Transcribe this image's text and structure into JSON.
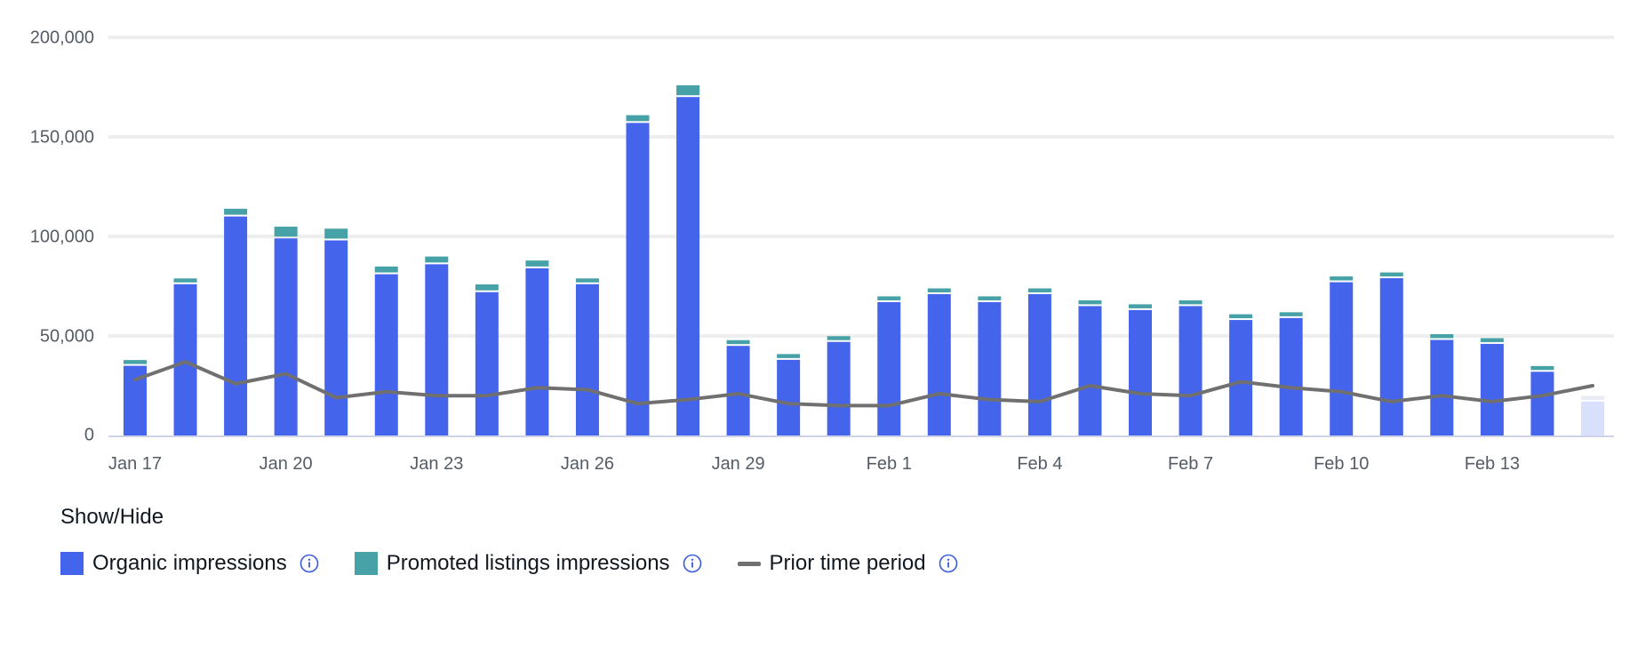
{
  "colors": {
    "organic": "#4464ec",
    "promoted": "#47a2a8",
    "prior": "#707070",
    "partial_organic": "#d9e0fb",
    "partial_promoted": "#e8ecf4",
    "grid": "#eeeeee",
    "axis": "#cfd3e8",
    "info_icon": "#3b5bdb"
  },
  "legend": {
    "title": "Show/Hide",
    "items": [
      {
        "label": "Organic impressions",
        "icon": "square-swatch",
        "info_icon": "info-circle-icon"
      },
      {
        "label": "Promoted listings impressions",
        "icon": "square-swatch",
        "info_icon": "info-circle-icon"
      },
      {
        "label": "Prior time period",
        "icon": "line-swatch",
        "info_icon": "info-circle-icon"
      }
    ]
  },
  "chart_data": {
    "type": "bar",
    "stacked": true,
    "x": [
      "Jan 17",
      "Jan 18",
      "Jan 19",
      "Jan 20",
      "Jan 21",
      "Jan 22",
      "Jan 23",
      "Jan 24",
      "Jan 25",
      "Jan 26",
      "Jan 27",
      "Jan 28",
      "Jan 29",
      "Jan 30",
      "Jan 31",
      "Feb 1",
      "Feb 2",
      "Feb 3",
      "Feb 4",
      "Feb 5",
      "Feb 6",
      "Feb 7",
      "Feb 8",
      "Feb 9",
      "Feb 10",
      "Feb 11",
      "Feb 12",
      "Feb 13",
      "Feb 14",
      "Feb 15"
    ],
    "x_tick_labels": [
      "Jan 17",
      "Jan 20",
      "Jan 23",
      "Jan 26",
      "Jan 29",
      "Feb 1",
      "Feb 4",
      "Feb 7",
      "Feb 10",
      "Feb 13"
    ],
    "x_tick_indices": [
      0,
      3,
      6,
      9,
      12,
      15,
      18,
      21,
      24,
      27
    ],
    "y_ticks": [
      0,
      50000,
      100000,
      150000,
      200000
    ],
    "y_tick_labels": [
      "0",
      "50,000",
      "100,000",
      "150,000",
      "200,000"
    ],
    "ylim": [
      0,
      200000
    ],
    "grid": true,
    "series": [
      {
        "name": "Organic impressions",
        "kind": "bar",
        "values": [
          35000,
          76000,
          110000,
          99000,
          98000,
          81000,
          86000,
          72000,
          84000,
          76000,
          157000,
          170000,
          45000,
          38000,
          47000,
          67000,
          71000,
          67000,
          71000,
          65000,
          63000,
          65000,
          58000,
          59000,
          77000,
          79000,
          48000,
          46000,
          32000,
          17000
        ]
      },
      {
        "name": "Promoted listings impressions",
        "kind": "bar",
        "values": [
          2000,
          2000,
          3000,
          5000,
          5000,
          3000,
          3000,
          3000,
          3000,
          2000,
          3000,
          5000,
          2000,
          2000,
          2000,
          2000,
          2000,
          2000,
          2000,
          2000,
          2000,
          2000,
          2000,
          2000,
          2000,
          2000,
          2000,
          2000,
          2000,
          2000
        ]
      },
      {
        "name": "Prior time period",
        "kind": "line",
        "values": [
          28000,
          37000,
          26000,
          31000,
          19000,
          22000,
          20000,
          20000,
          24000,
          23000,
          16000,
          18000,
          21000,
          16000,
          15000,
          15000,
          21000,
          18000,
          17000,
          25000,
          21000,
          20000,
          27000,
          24000,
          22000,
          17000,
          20000,
          17000,
          20000,
          25000
        ]
      }
    ],
    "partial_last_bar": true
  }
}
